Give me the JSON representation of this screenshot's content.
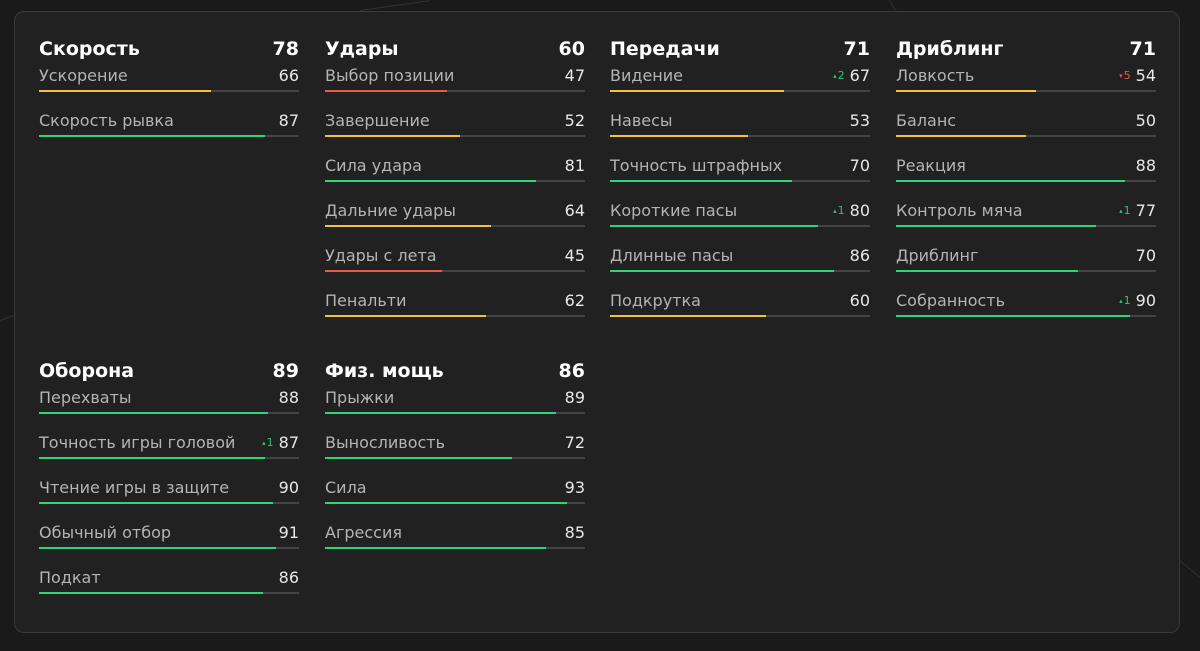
{
  "colors": {
    "high": "#2ed47a",
    "medium": "#f2c23a",
    "low": "#e8594a"
  },
  "groups": [
    {
      "title": "Скорость",
      "value": "78",
      "attributes": [
        {
          "label": "Ускорение",
          "value": "66"
        },
        {
          "label": "Скорость рывка",
          "value": "87"
        }
      ]
    },
    {
      "title": "Удары",
      "value": "60",
      "attributes": [
        {
          "label": "Выбор позиции",
          "value": "47"
        },
        {
          "label": "Завершение",
          "value": "52"
        },
        {
          "label": "Сила удара",
          "value": "81"
        },
        {
          "label": "Дальние удары",
          "value": "64"
        },
        {
          "label": "Удары с лета",
          "value": "45"
        },
        {
          "label": "Пенальти",
          "value": "62"
        }
      ]
    },
    {
      "title": "Передачи",
      "value": "71",
      "attributes": [
        {
          "label": "Видение",
          "value": "67",
          "change": "2",
          "change_dir": "up"
        },
        {
          "label": "Навесы",
          "value": "53"
        },
        {
          "label": "Точность штрафных",
          "value": "70"
        },
        {
          "label": "Короткие пасы",
          "value": "80",
          "change": "1",
          "change_dir": "up"
        },
        {
          "label": "Длинные пасы",
          "value": "86"
        },
        {
          "label": "Подкрутка",
          "value": "60"
        }
      ]
    },
    {
      "title": "Дриблинг",
      "value": "71",
      "attributes": [
        {
          "label": "Ловкость",
          "value": "54",
          "change": "5",
          "change_dir": "down"
        },
        {
          "label": "Баланс",
          "value": "50"
        },
        {
          "label": "Реакция",
          "value": "88"
        },
        {
          "label": "Контроль мяча",
          "value": "77",
          "change": "1",
          "change_dir": "up"
        },
        {
          "label": "Дриблинг",
          "value": "70"
        },
        {
          "label": "Собранность",
          "value": "90",
          "change": "1",
          "change_dir": "up"
        }
      ]
    },
    {
      "title": "Оборона",
      "value": "89",
      "attributes": [
        {
          "label": "Перехваты",
          "value": "88"
        },
        {
          "label": "Точность игры головой",
          "value": "87",
          "change": "1",
          "change_dir": "up"
        },
        {
          "label": "Чтение игры в защите",
          "value": "90"
        },
        {
          "label": "Обычный отбор",
          "value": "91"
        },
        {
          "label": "Подкат",
          "value": "86"
        }
      ]
    },
    {
      "title": "Физ. мощь",
      "value": "86",
      "attributes": [
        {
          "label": "Прыжки",
          "value": "89"
        },
        {
          "label": "Выносливость",
          "value": "72"
        },
        {
          "label": "Сила",
          "value": "93"
        },
        {
          "label": "Агрессия",
          "value": "85"
        }
      ]
    }
  ]
}
